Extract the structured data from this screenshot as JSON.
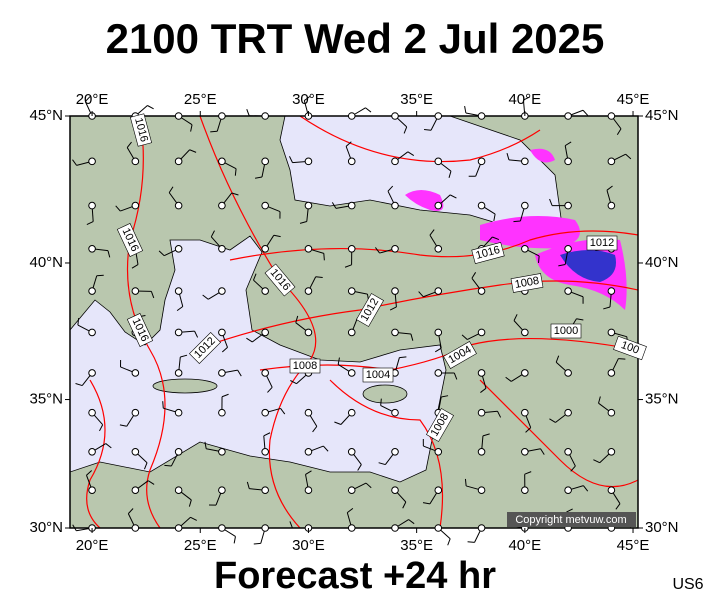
{
  "header": {
    "title": "2100 TRT Wed 2 Jul 2025"
  },
  "map": {
    "lon_ticks": [
      {
        "value": 20,
        "label": "20°E"
      },
      {
        "value": 25,
        "label": "25°E"
      },
      {
        "value": 30,
        "label": "30°E"
      },
      {
        "value": 35,
        "label": "35°E"
      },
      {
        "value": 40,
        "label": "40°E"
      },
      {
        "value": 45,
        "label": "45°E"
      }
    ],
    "lat_ticks": [
      {
        "value": 45,
        "label": "45°N"
      },
      {
        "value": 40,
        "label": "40°N"
      },
      {
        "value": 35,
        "label": "35°N"
      },
      {
        "value": 30,
        "label": "30°N"
      }
    ],
    "isobar_labels": [
      "1016",
      "1016",
      "1016",
      "1016",
      "1012",
      "1012",
      "1008",
      "1004",
      "1004",
      "1016",
      "1012",
      "1008",
      "1000",
      "1008",
      "100"
    ],
    "copyright": "Copyright metvuw.com"
  },
  "footer": {
    "text": "Forecast +24 hr",
    "code": "US6"
  }
}
